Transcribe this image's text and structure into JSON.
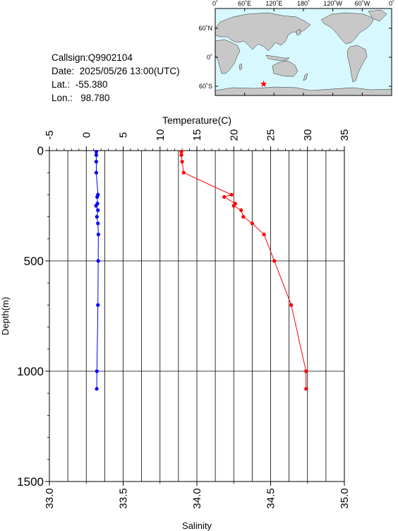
{
  "header": {
    "callsign": "Callsign:Q9902104",
    "date": "Date:  2025/05/26 13:00(UTC)",
    "lat": "Lat.:  -55.380",
    "lon": "Lon.:   98.780"
  },
  "map": {
    "top_labels": [
      "0˚",
      "60˚E",
      "120˚E",
      "180˚",
      "120˚W",
      "60˚W",
      "0˚"
    ],
    "lat_labels": [
      "60˚N",
      "0˚",
      "60˚S"
    ],
    "station": {
      "lat": -55.38,
      "lon": 98.78
    },
    "colors": {
      "ocean": "#d8f8ff",
      "land": "#c8c8c8",
      "marker": "#ff0000"
    }
  },
  "chart_data": {
    "type": "line",
    "ylabel": "Depth(m)",
    "ylim": [
      1500,
      0
    ],
    "yticks": [
      0,
      500,
      1000,
      1500
    ],
    "top_axis": {
      "label": "Temperature(C)",
      "range": [
        -5,
        35
      ],
      "ticks": [
        -5,
        0,
        5,
        10,
        15,
        20,
        25,
        30,
        35
      ]
    },
    "bottom_axis": {
      "label": "Salinity",
      "range": [
        33.0,
        35.0
      ],
      "ticks": [
        "33.0",
        "33.5",
        "34.0",
        "34.5",
        "35.0"
      ]
    },
    "grid": true,
    "series": [
      {
        "axis": "top",
        "color": "#ff0000",
        "depth": [
          5,
          20,
          50,
          100,
          200,
          210,
          240,
          250,
          270,
          300,
          330,
          380,
          500,
          700,
          1000,
          1080
        ],
        "values": [
          12.9,
          12.9,
          13.0,
          13.2,
          19.7,
          18.7,
          20.2,
          20.0,
          21.0,
          21.3,
          22.5,
          24.1,
          25.5,
          27.8,
          29.8,
          29.8
        ]
      },
      {
        "axis": "bottom",
        "color": "#0000ff",
        "depth": [
          5,
          20,
          50,
          100,
          200,
          210,
          240,
          250,
          270,
          300,
          330,
          380,
          500,
          700,
          1000,
          1080
        ],
        "values": [
          33.318,
          33.318,
          33.318,
          33.318,
          33.329,
          33.324,
          33.326,
          33.316,
          33.329,
          33.322,
          33.329,
          33.332,
          33.331,
          33.329,
          33.322,
          33.321
        ]
      }
    ]
  }
}
